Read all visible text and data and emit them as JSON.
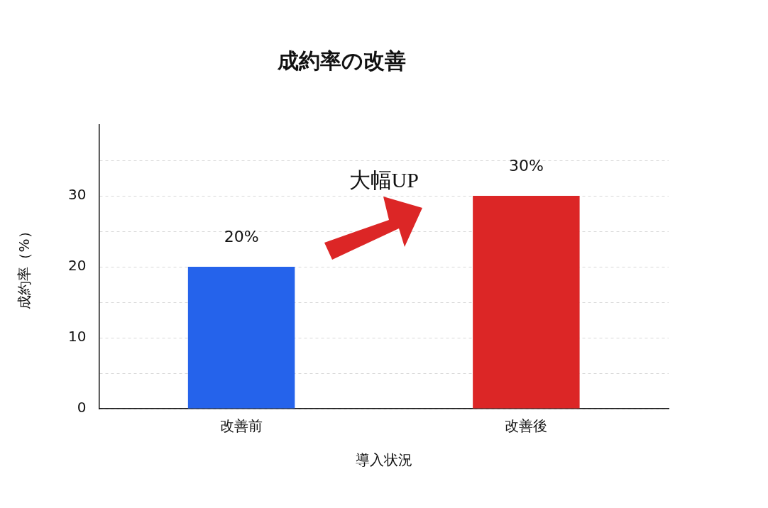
{
  "chart_data": {
    "type": "bar",
    "title": "成約率の改善",
    "xlabel": "導入状況",
    "ylabel": "成約率（%）",
    "categories": [
      "改善前",
      "改善後"
    ],
    "values": [
      20,
      30
    ],
    "colors": [
      "#2563eb",
      "#dc2626"
    ],
    "value_labels": [
      "20%",
      "30%"
    ],
    "ylim": [
      0,
      40
    ],
    "yticks": [
      0,
      {
        "value": 5,
        "label": null
      },
      10,
      {
        "value": 15,
        "label": null
      },
      20,
      {
        "value": 25,
        "label": null
      },
      30,
      {
        "value": 35,
        "label": null
      }
    ],
    "grid": "y",
    "legend": false,
    "annotations": [
      "大幅UP"
    ]
  }
}
